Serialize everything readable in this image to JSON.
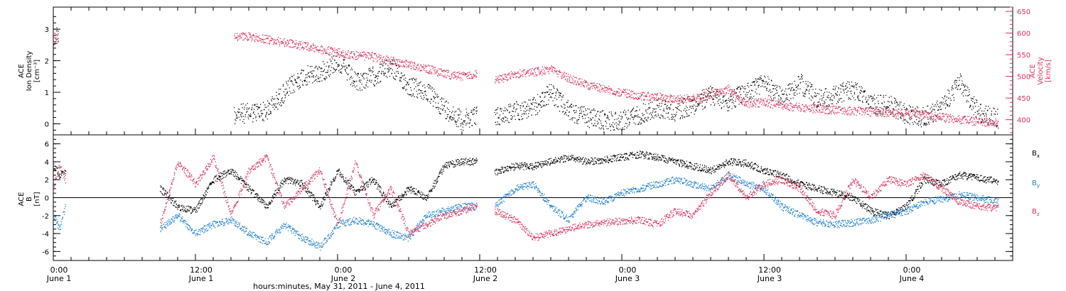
{
  "chart_data": [
    {
      "type": "scatter",
      "title": "",
      "ylabel_lines": [
        "ACE",
        "Ion Density",
        "[cm⁻³]"
      ],
      "ylim": [
        -0.35,
        3.7
      ],
      "yticks": [
        0,
        1,
        2,
        3
      ],
      "y2label_lines": [
        "ACE",
        "Velocity",
        "[km/s]"
      ],
      "y2lim": [
        365,
        660
      ],
      "y2ticks": [
        400,
        450,
        500,
        550,
        600,
        650
      ],
      "series": [
        {
          "axis": "left",
          "color": "#000000",
          "segments": [
            {
              "x": [
                0,
                0.8
              ],
              "y": [
                2.6,
                2.9
              ]
            },
            {
              "x": [
                30.5,
                36,
                39,
                42,
                45,
                48,
                51,
                54,
                57,
                60,
                63,
                66,
                69,
                71.5
              ],
              "y": [
                0.3,
                0.4,
                1.0,
                1.5,
                1.6,
                2.0,
                1.3,
                1.5,
                1.8,
                1.2,
                1.0,
                0.5,
                0.1,
                0.3
              ]
            },
            {
              "x": [
                74.5,
                78,
                81,
                84,
                87,
                90,
                93,
                96,
                99,
                102,
                105,
                108,
                111,
                114,
                117,
                120,
                123,
                126,
                129,
                132,
                135,
                138,
                141,
                144,
                147,
                150,
                153,
                156,
                159.5
              ],
              "y": [
                0.2,
                0.4,
                0.5,
                1.0,
                0.4,
                0.2,
                0.1,
                0.1,
                0.3,
                0.5,
                0.4,
                0.6,
                0.9,
                0.7,
                1.0,
                1.3,
                0.8,
                1.3,
                0.8,
                0.9,
                1.1,
                0.6,
                0.6,
                0.3,
                0.2,
                0.5,
                1.3,
                0.4,
                0.15
              ]
            }
          ]
        },
        {
          "axis": "right",
          "color": "#e0305a",
          "segments": [
            {
              "x": [
                0,
                0.8
              ],
              "y": [
                585,
                590
              ]
            },
            {
              "x": [
                30.5,
                33,
                36,
                39,
                42,
                45,
                48,
                51,
                54,
                57,
                60,
                63,
                66,
                69,
                71.5
              ],
              "y": [
                590,
                592,
                585,
                578,
                570,
                562,
                555,
                548,
                545,
                535,
                528,
                518,
                505,
                500,
                505
              ]
            },
            {
              "x": [
                74.5,
                78,
                81,
                84,
                87,
                90,
                93,
                96,
                99,
                102,
                105,
                108,
                111,
                114,
                117,
                120,
                123,
                126,
                129,
                132,
                135,
                138,
                141,
                144,
                147,
                150,
                153,
                156,
                159.5
              ],
              "y": [
                490,
                505,
                510,
                515,
                495,
                480,
                470,
                462,
                455,
                452,
                448,
                448,
                458,
                470,
                437,
                440,
                432,
                428,
                425,
                422,
                420,
                418,
                416,
                414,
                412,
                405,
                400,
                395,
                393
              ]
            }
          ]
        }
      ]
    },
    {
      "type": "scatter",
      "title": "",
      "ylabel_lines": [
        "ACE",
        "B",
        "[nT]"
      ],
      "ylim": [
        -7,
        7
      ],
      "yticks": [
        -6,
        -4,
        -2,
        0,
        2,
        4,
        6
      ],
      "zero_line": true,
      "series": [
        {
          "name": "Bx",
          "legend_main": "B",
          "legend_sub": "x",
          "color": "#000000",
          "segments": [
            {
              "x": [
                0,
                1,
                2
              ],
              "y": [
                3.5,
                2.5,
                3.0
              ]
            },
            {
              "x": [
                18,
                21,
                24,
                27,
                30,
                33,
                36,
                39,
                42,
                45,
                48,
                51,
                54,
                57,
                60,
                63,
                66,
                69,
                71.5
              ],
              "y": [
                1.0,
                -1.0,
                -1.5,
                2.0,
                3.0,
                1.0,
                -1.0,
                2.0,
                1.5,
                -1.0,
                3.0,
                0.5,
                2.0,
                -1.0,
                1.0,
                0.0,
                3.5,
                4.0,
                4.0
              ]
            },
            {
              "x": [
                74.5,
                78,
                81,
                84,
                87,
                90,
                93,
                96,
                99,
                102,
                105,
                108,
                111,
                114,
                117,
                120,
                123,
                126,
                129,
                132,
                135,
                138,
                141,
                144,
                147,
                150,
                153,
                156,
                159.5
              ],
              "y": [
                2.8,
                3.5,
                3.5,
                4.0,
                4.5,
                4.0,
                4.2,
                4.5,
                4.8,
                4.5,
                4.0,
                3.5,
                3.0,
                4.0,
                3.8,
                3.0,
                2.5,
                1.5,
                1.0,
                0.5,
                0.0,
                -1.5,
                -2.0,
                -1.0,
                2.0,
                1.5,
                2.5,
                2.2,
                1.8
              ]
            }
          ]
        },
        {
          "name": "By",
          "legend_main": "B",
          "legend_sub": "y",
          "color": "#1a7fd6",
          "segments": [
            {
              "x": [
                0,
                1,
                2
              ],
              "y": [
                -2.0,
                -3.5,
                -1.0
              ]
            },
            {
              "x": [
                18,
                21,
                24,
                27,
                30,
                33,
                36,
                39,
                42,
                45,
                48,
                51,
                54,
                57,
                60,
                63,
                66,
                69,
                71.5
              ],
              "y": [
                -3.5,
                -2.0,
                -4.0,
                -3.0,
                -2.5,
                -4.0,
                -5.0,
                -3.0,
                -4.5,
                -5.5,
                -3.0,
                -2.5,
                -3.0,
                -4.0,
                -4.5,
                -2.0,
                -1.5,
                -1.0,
                -1.0
              ]
            },
            {
              "x": [
                74.5,
                78,
                81,
                84,
                87,
                90,
                93,
                96,
                99,
                102,
                105,
                108,
                111,
                114,
                117,
                120,
                123,
                126,
                129,
                132,
                135,
                138,
                141,
                144,
                147,
                150,
                153,
                156,
                159.5
              ],
              "y": [
                -1.0,
                1.0,
                1.5,
                -1.0,
                -2.5,
                0.0,
                -0.5,
                0.5,
                1.0,
                1.5,
                2.0,
                1.5,
                1.0,
                2.5,
                1.5,
                1.0,
                -1.0,
                -2.0,
                -2.8,
                -3.0,
                -2.8,
                -2.5,
                -2.0,
                -1.5,
                -0.5,
                -0.2,
                0.3,
                0.0,
                -0.5
              ]
            }
          ]
        },
        {
          "name": "Bz",
          "legend_main": "B",
          "legend_sub": "z",
          "color": "#e0305a",
          "segments": [
            {
              "x": [
                0,
                1,
                2
              ],
              "y": [
                1.0,
                3.5,
                2.0
              ]
            },
            {
              "x": [
                18,
                21,
                24,
                27,
                30,
                33,
                36,
                39,
                42,
                45,
                48,
                51,
                54,
                57,
                60,
                63,
                66,
                69,
                71.5
              ],
              "y": [
                -3.0,
                4.0,
                1.5,
                4.5,
                -2.0,
                3.0,
                4.5,
                -1.0,
                1.0,
                3.0,
                -3.0,
                4.0,
                -2.0,
                1.0,
                -4.0,
                -3.0,
                -2.0,
                -1.5,
                -1.0
              ]
            },
            {
              "x": [
                74.5,
                78,
                81,
                84,
                87,
                90,
                93,
                96,
                99,
                102,
                105,
                108,
                111,
                114,
                117,
                120,
                123,
                126,
                129,
                132,
                135,
                138,
                141,
                144,
                147,
                150,
                153,
                156,
                159.5
              ],
              "y": [
                -1.5,
                -2.5,
                -4.5,
                -4.0,
                -3.5,
                -3.0,
                -2.8,
                -2.6,
                -2.5,
                -3.0,
                -1.5,
                -2.0,
                0.5,
                2.5,
                0.0,
                1.5,
                2.0,
                1.0,
                -1.5,
                -2.0,
                2.0,
                0.0,
                2.0,
                1.5,
                2.5,
                1.0,
                -0.5,
                -1.0,
                -1.2
              ]
            }
          ]
        }
      ]
    }
  ],
  "x_axis": {
    "range_hours": [
      0,
      162
    ],
    "major_ticks": [
      {
        "h": 0,
        "time": "0:00",
        "date": "June 1"
      },
      {
        "h": 24,
        "time": "12:00",
        "date": "June 1"
      },
      {
        "h": 48,
        "time": "0:00",
        "date": "June 2"
      },
      {
        "h": 72,
        "time": "12:00",
        "date": "June 2"
      },
      {
        "h": 96,
        "time": "0:00",
        "date": "June 3"
      },
      {
        "h": 120,
        "time": "12:00",
        "date": "June 3"
      },
      {
        "h": 144,
        "time": "0:00",
        "date": "June 4"
      }
    ],
    "label": "hours:minutes, May 31, 2011 - June  4, 2011"
  }
}
